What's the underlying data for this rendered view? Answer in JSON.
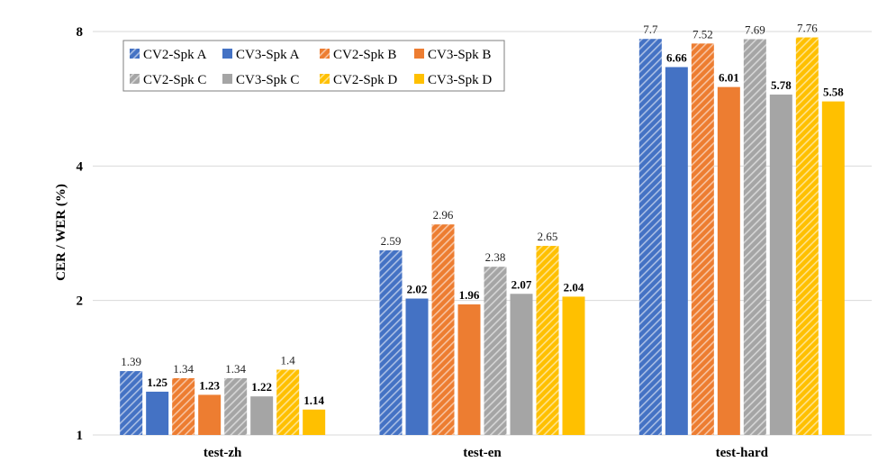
{
  "chart_data": {
    "type": "bar",
    "title": "",
    "xlabel": "",
    "ylabel": "CER / WER (%)",
    "yscale": "log2",
    "ylim": [
      1,
      8
    ],
    "yticks": [
      1,
      2,
      4,
      8
    ],
    "grid": true,
    "legend_position": "top-left",
    "categories": [
      "test-zh",
      "test-en",
      "test-hard"
    ],
    "series": [
      {
        "name": "CV2-Spk A",
        "values": [
          1.39,
          2.59,
          7.7
        ],
        "color": "#4472C4",
        "hatched": true
      },
      {
        "name": "CV3-Spk A",
        "values": [
          1.25,
          2.02,
          6.66
        ],
        "color": "#4472C4",
        "hatched": false
      },
      {
        "name": "CV2-Spk B",
        "values": [
          1.34,
          2.96,
          7.52
        ],
        "color": "#ED7D31",
        "hatched": true
      },
      {
        "name": "CV3-Spk B",
        "values": [
          1.23,
          1.96,
          6.01
        ],
        "color": "#ED7D31",
        "hatched": false
      },
      {
        "name": "CV2-Spk C",
        "values": [
          1.34,
          2.38,
          7.69
        ],
        "color": "#A5A5A5",
        "hatched": true
      },
      {
        "name": "CV3-Spk C",
        "values": [
          1.22,
          2.07,
          5.78
        ],
        "color": "#A5A5A5",
        "hatched": false
      },
      {
        "name": "CV2-Spk D",
        "values": [
          1.4,
          2.65,
          7.76
        ],
        "color": "#FFC000",
        "hatched": true
      },
      {
        "name": "CV3-Spk D",
        "values": [
          1.14,
          2.04,
          5.58
        ],
        "color": "#FFC000",
        "hatched": false
      }
    ]
  }
}
